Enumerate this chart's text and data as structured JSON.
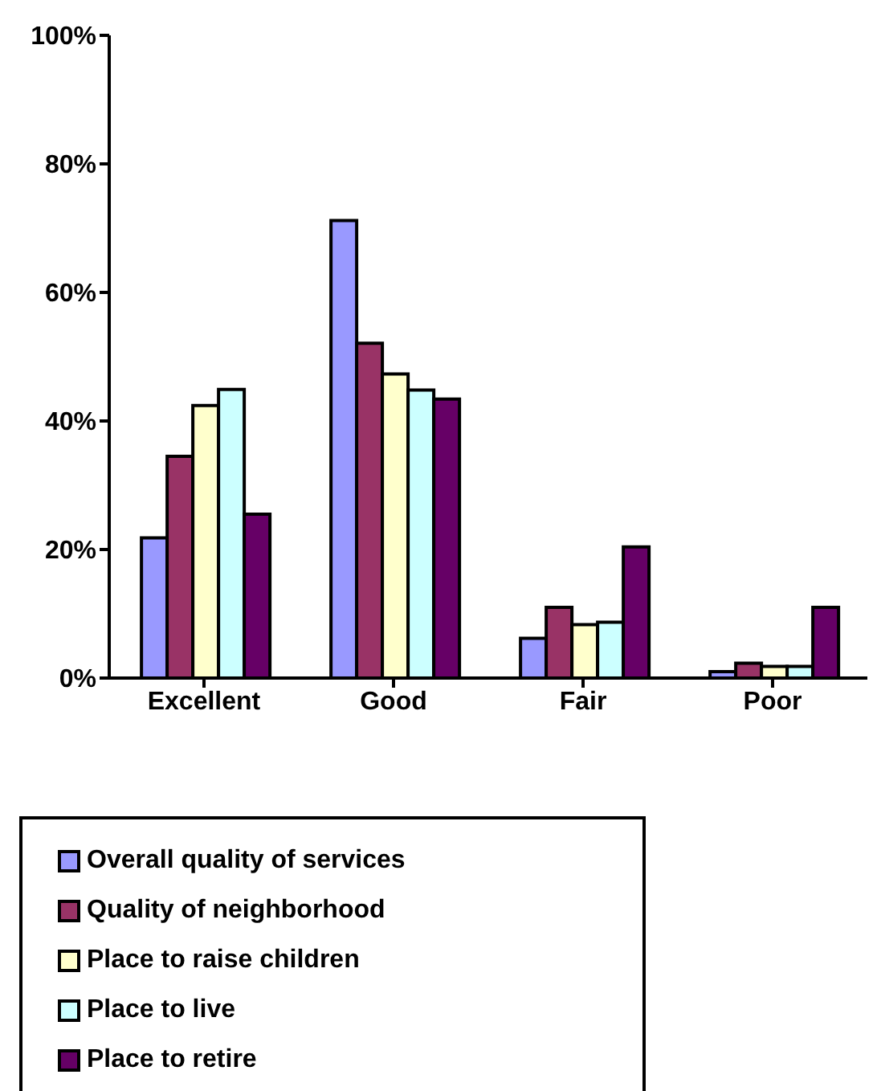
{
  "chart_data": {
    "type": "bar",
    "categories": [
      "Excellent",
      "Good",
      "Fair",
      "Poor"
    ],
    "series": [
      {
        "name": "Overall quality of services",
        "color": "#9999ff",
        "values": [
          21.8,
          71.2,
          6.2,
          1
        ]
      },
      {
        "name": "Quality of neighborhood",
        "color": "#993366",
        "values": [
          34.5,
          52.1,
          11,
          2.3
        ]
      },
      {
        "name": "Place to raise children",
        "color": "#ffffcc",
        "values": [
          42.4,
          47.3,
          8.3,
          1.8
        ]
      },
      {
        "name": "Place to live",
        "color": "#ccffff",
        "values": [
          44.9,
          44.8,
          8.7,
          1.8
        ]
      },
      {
        "name": "Place to retire",
        "color": "#660066",
        "values": [
          25.5,
          43.4,
          20.4,
          11
        ]
      }
    ],
    "ylim": [
      0,
      100
    ],
    "yticks": [
      {
        "value": 0,
        "label": "0%"
      },
      {
        "value": 20,
        "label": "20%"
      },
      {
        "value": 40,
        "label": "40%"
      },
      {
        "value": 60,
        "label": "60%"
      },
      {
        "value": 80,
        "label": "80%"
      },
      {
        "value": 100,
        "label": "100%"
      }
    ],
    "grid": false,
    "legend": "bottom"
  }
}
